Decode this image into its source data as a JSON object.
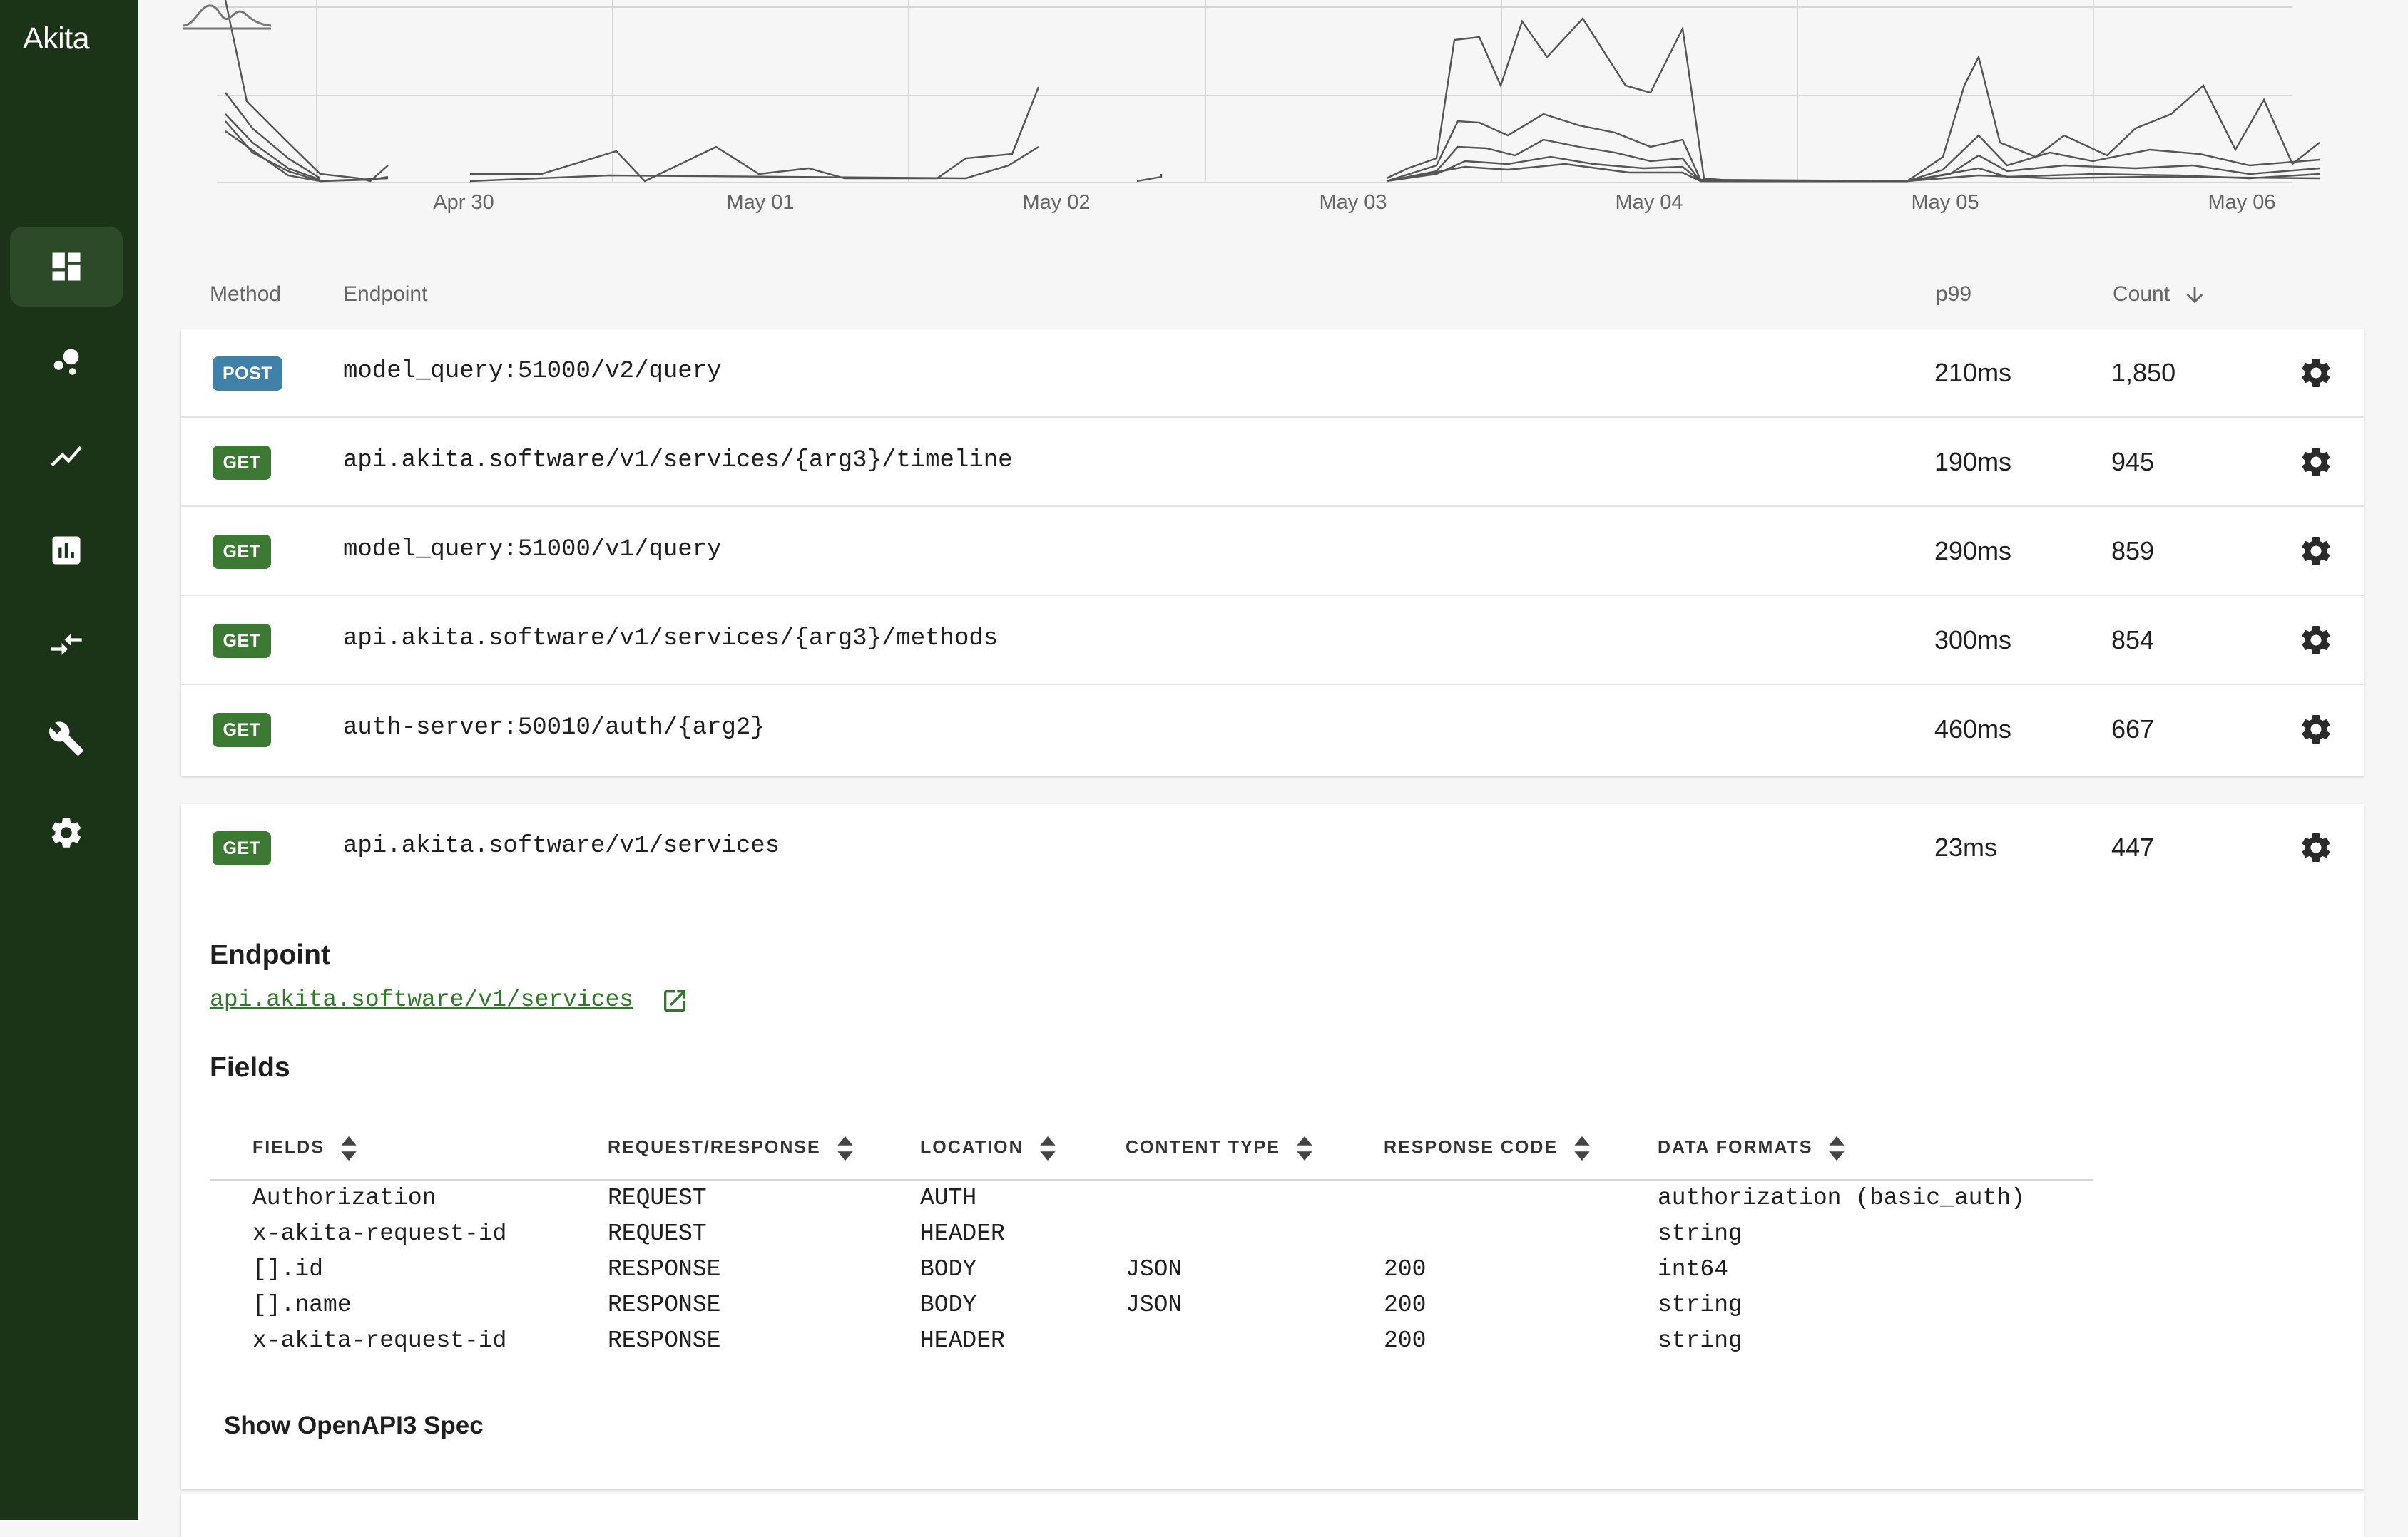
{
  "app": {
    "name": "Akita"
  },
  "sidebar": {
    "items": [
      {
        "name": "dashboard",
        "icon": "dashboard-icon",
        "active": true
      },
      {
        "name": "bubbles",
        "icon": "bubble-chart-icon",
        "active": false
      },
      {
        "name": "trends",
        "icon": "trend-line-icon",
        "active": false
      },
      {
        "name": "reports",
        "icon": "bar-chart-icon",
        "active": false
      },
      {
        "name": "diffs",
        "icon": "compare-arrows-icon",
        "active": false
      },
      {
        "name": "tools",
        "icon": "wrench-icon",
        "active": false
      },
      {
        "name": "settings",
        "icon": "gear-icon",
        "active": false
      }
    ]
  },
  "chart": {
    "x_ticks": [
      "Apr 30",
      "May 01",
      "May 02",
      "May 03",
      "May 04",
      "May 05",
      "May 06"
    ]
  },
  "table": {
    "headers": {
      "method": "Method",
      "endpoint": "Endpoint",
      "p99": "p99",
      "count": "Count"
    },
    "rows": [
      {
        "method": "POST",
        "endpoint": "model_query:51000/v2/query",
        "p99": "210ms",
        "count": "1,850"
      },
      {
        "method": "GET",
        "endpoint": "api.akita.software/v1/services/{arg3}/timeline",
        "p99": "190ms",
        "count": "945"
      },
      {
        "method": "GET",
        "endpoint": "model_query:51000/v1/query",
        "p99": "290ms",
        "count": "859"
      },
      {
        "method": "GET",
        "endpoint": "api.akita.software/v1/services/{arg3}/methods",
        "p99": "300ms",
        "count": "854"
      },
      {
        "method": "GET",
        "endpoint": "auth-server:50010/auth/{arg2}",
        "p99": "460ms",
        "count": "667"
      }
    ]
  },
  "expanded": {
    "method": "GET",
    "endpoint": "api.akita.software/v1/services",
    "p99": "23ms",
    "count": "447",
    "endpoint_title": "Endpoint",
    "endpoint_link": "api.akita.software/v1/services",
    "fields_title": "Fields",
    "field_headers": [
      "FIELDS",
      "REQUEST/RESPONSE",
      "LOCATION",
      "CONTENT TYPE",
      "RESPONSE CODE",
      "DATA FORMATS"
    ],
    "fields": [
      {
        "field": "Authorization",
        "reqres": "REQUEST",
        "location": "AUTH",
        "content_type": "",
        "code": "",
        "format": "authorization (basic_auth)"
      },
      {
        "field": "x-akita-request-id",
        "reqres": "REQUEST",
        "location": "HEADER",
        "content_type": "",
        "code": "",
        "format": "string"
      },
      {
        "field": "[].id",
        "reqres": "RESPONSE",
        "location": "BODY",
        "content_type": "JSON",
        "code": "200",
        "format": "int64"
      },
      {
        "field": "[].name",
        "reqres": "RESPONSE",
        "location": "BODY",
        "content_type": "JSON",
        "code": "200",
        "format": "string"
      },
      {
        "field": "x-akita-request-id",
        "reqres": "RESPONSE",
        "location": "HEADER",
        "content_type": "",
        "code": "200",
        "format": "string"
      }
    ],
    "show_spec_label": "Show OpenAPI3 Spec"
  },
  "colors": {
    "sidebar_bg": "#1b3418",
    "post_badge": "#3f81a8",
    "get_badge": "#3c7a33",
    "link": "#2f7a2a"
  }
}
